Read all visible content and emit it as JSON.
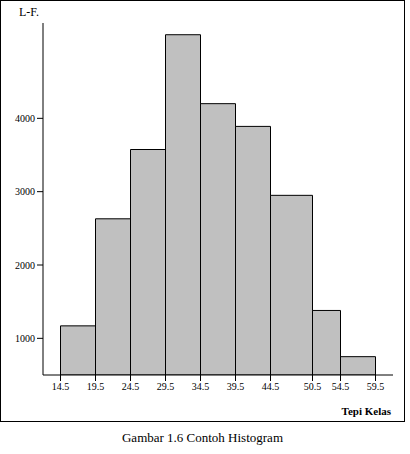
{
  "chart_data": {
    "type": "histogram",
    "title": "Gambar 1.6  Contoh Histogram",
    "x_label": "Tepi Kelas",
    "y_label": "L-F.",
    "bins": [
      14.5,
      19.5,
      24.5,
      29.5,
      34.5,
      39.5,
      44.5,
      50.5,
      54.5,
      59.5
    ],
    "values": [
      1170,
      2630,
      3575,
      5140,
      4200,
      3890,
      2950,
      1380,
      750
    ],
    "color": "#c0c0c0",
    "xlim": [
      12,
      62
    ],
    "xticks": [
      14.5,
      19.5,
      24.5,
      29.5,
      34.5,
      39.5,
      44.5,
      50.5,
      54.5,
      59.5
    ],
    "ylim": [
      500,
      5300
    ],
    "yticks": [
      1000,
      2000,
      3000,
      4000
    ],
    "grid": false
  }
}
